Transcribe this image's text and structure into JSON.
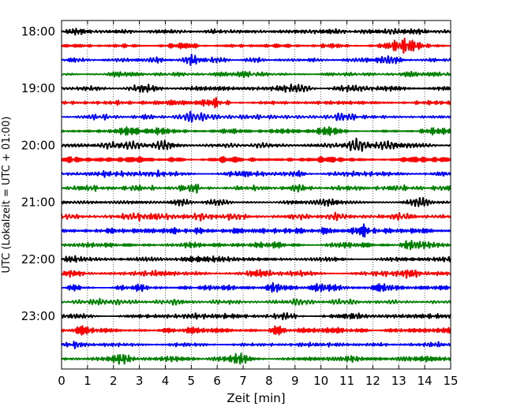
{
  "chart_data": {
    "type": "line",
    "chart_kind": "helicorder",
    "title": "",
    "xlabel": "Zeit  [min]",
    "ylabel": "UTC (Lokalzeit = UTC + 01:00)",
    "xlim": [
      0,
      15
    ],
    "x_ticks": [
      "0",
      "1",
      "2",
      "3",
      "4",
      "5",
      "6",
      "7",
      "8",
      "9",
      "10",
      "11",
      "12",
      "13",
      "14",
      "15"
    ],
    "y_ticks": [
      "18:00",
      "19:00",
      "20:00",
      "21:00",
      "22:00",
      "23:00"
    ],
    "y_tick_rows": [
      0,
      4,
      8,
      12,
      16,
      20
    ],
    "grid": "vertical dotted lines at each minute",
    "legend": "none",
    "trace_count": 24,
    "trace_interval_minutes": 15,
    "trace_colors": [
      "#000000",
      "#ff0000",
      "#0000ff",
      "#008000"
    ],
    "series": [
      {
        "start": "18:00",
        "color": "#000000",
        "seed": 11,
        "bursts": [
          [
            6.0,
            0.6
          ],
          [
            9.3,
            0.5
          ],
          [
            12.8,
            0.6
          ]
        ]
      },
      {
        "start": "18:15",
        "color": "#ff0000",
        "seed": 23,
        "bursts": [
          [
            13.4,
            1.0
          ],
          [
            12.9,
            0.5
          ],
          [
            5.0,
            0.4
          ]
        ]
      },
      {
        "start": "18:30",
        "color": "#0000ff",
        "seed": 37,
        "bursts": [
          [
            5.0,
            0.7
          ],
          [
            12.6,
            0.5
          ],
          [
            3.6,
            0.4
          ]
        ]
      },
      {
        "start": "18:45",
        "color": "#008000",
        "seed": 41,
        "bursts": [
          [
            7.3,
            0.4
          ],
          [
            14.8,
            0.4
          ],
          [
            2.3,
            0.4
          ]
        ]
      },
      {
        "start": "19:00",
        "color": "#000000",
        "seed": 53,
        "bursts": [
          [
            9.3,
            0.6
          ],
          [
            6.2,
            0.4
          ],
          [
            11.5,
            0.4
          ]
        ]
      },
      {
        "start": "19:15",
        "color": "#ff0000",
        "seed": 67,
        "bursts": [
          [
            5.9,
            0.6
          ],
          [
            4.4,
            0.5
          ],
          [
            2.2,
            0.4
          ]
        ]
      },
      {
        "start": "19:30",
        "color": "#0000ff",
        "seed": 71,
        "bursts": [
          [
            3.2,
            0.6
          ],
          [
            10.9,
            0.6
          ],
          [
            4.9,
            0.5
          ]
        ]
      },
      {
        "start": "19:45",
        "color": "#008000",
        "seed": 83,
        "bursts": [
          [
            3.8,
            0.6
          ],
          [
            2.6,
            0.5
          ],
          [
            10.2,
            0.4
          ]
        ]
      },
      {
        "start": "20:00",
        "color": "#000000",
        "seed": 97,
        "bursts": [
          [
            11.2,
            0.6
          ],
          [
            4.0,
            0.5
          ],
          [
            12.8,
            0.4
          ]
        ]
      },
      {
        "start": "20:15",
        "color": "#ff0000",
        "seed": 101,
        "bursts": [
          [
            0.5,
            0.5
          ],
          [
            4.4,
            0.5
          ],
          [
            6.6,
            0.4
          ]
        ]
      },
      {
        "start": "20:30",
        "color": "#0000ff",
        "seed": 113,
        "bursts": [
          [
            9.1,
            0.6
          ],
          [
            3.6,
            0.4
          ],
          [
            1.6,
            0.4
          ]
        ]
      },
      {
        "start": "20:45",
        "color": "#008000",
        "seed": 127,
        "bursts": [
          [
            5.0,
            0.6
          ],
          [
            9.2,
            0.5
          ],
          [
            7.7,
            0.4
          ]
        ]
      },
      {
        "start": "21:00",
        "color": "#000000",
        "seed": 131,
        "bursts": [
          [
            4.6,
            0.6
          ],
          [
            10.4,
            0.5
          ],
          [
            14.0,
            0.5
          ]
        ]
      },
      {
        "start": "21:15",
        "color": "#ff0000",
        "seed": 149,
        "bursts": [
          [
            3.6,
            0.5
          ],
          [
            10.6,
            0.4
          ],
          [
            5.4,
            0.3
          ]
        ]
      },
      {
        "start": "21:30",
        "color": "#0000ff",
        "seed": 157,
        "bursts": [
          [
            11.6,
            0.6
          ],
          [
            10.2,
            0.5
          ],
          [
            5.3,
            0.4
          ]
        ]
      },
      {
        "start": "21:45",
        "color": "#008000",
        "seed": 163,
        "bursts": [
          [
            13.5,
            0.7
          ],
          [
            10.5,
            0.4
          ],
          [
            5.0,
            0.4
          ]
        ]
      },
      {
        "start": "22:00",
        "color": "#000000",
        "seed": 173,
        "bursts": [
          [
            10.6,
            0.6
          ],
          [
            5.0,
            0.5
          ],
          [
            0.3,
            0.5
          ]
        ]
      },
      {
        "start": "22:15",
        "color": "#ff0000",
        "seed": 181,
        "bursts": [
          [
            13.5,
            0.5
          ],
          [
            9.2,
            0.4
          ],
          [
            3.4,
            0.4
          ]
        ]
      },
      {
        "start": "22:30",
        "color": "#0000ff",
        "seed": 191,
        "bursts": [
          [
            10.0,
            0.6
          ],
          [
            12.2,
            0.5
          ],
          [
            8.2,
            0.5
          ]
        ]
      },
      {
        "start": "22:45",
        "color": "#008000",
        "seed": 197,
        "bursts": [
          [
            1.4,
            0.5
          ],
          [
            9.3,
            0.5
          ],
          [
            4.7,
            0.4
          ]
        ]
      },
      {
        "start": "23:00",
        "color": "#000000",
        "seed": 211,
        "bursts": [
          [
            11.3,
            0.5
          ],
          [
            8.7,
            0.4
          ],
          [
            5.2,
            0.4
          ]
        ]
      },
      {
        "start": "23:15",
        "color": "#ff0000",
        "seed": 223,
        "bursts": [
          [
            8.3,
            0.6
          ],
          [
            0.9,
            0.5
          ],
          [
            13.0,
            0.4
          ]
        ]
      },
      {
        "start": "23:30",
        "color": "#0000ff",
        "seed": 227,
        "bursts": [
          [
            12.3,
            0.6
          ],
          [
            0.5,
            0.5
          ],
          [
            14.5,
            0.4
          ]
        ]
      },
      {
        "start": "23:45",
        "color": "#008000",
        "seed": 233,
        "bursts": [
          [
            11.0,
            0.6
          ],
          [
            6.9,
            0.5
          ],
          [
            2.2,
            0.5
          ]
        ]
      }
    ]
  }
}
